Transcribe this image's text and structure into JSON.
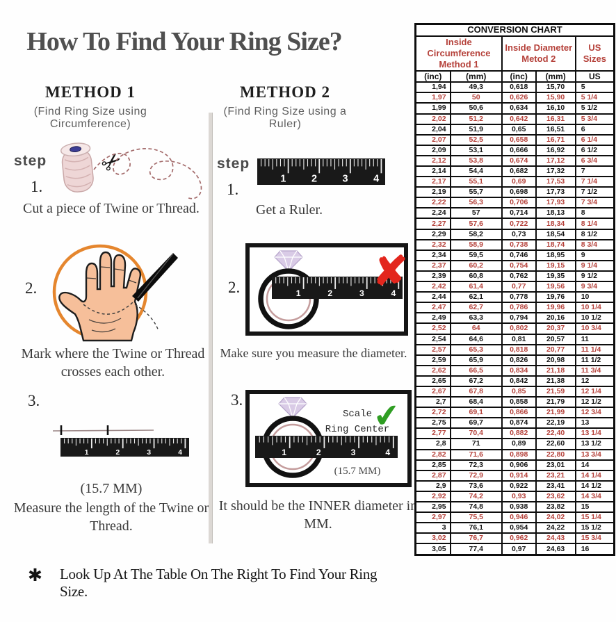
{
  "title": "How To Find Your Ring Size?",
  "footer": {
    "bullet": "✱",
    "text": "Look Up At The Table On The Right To Find Your Ring Size."
  },
  "icons": {
    "scissors": "✂",
    "check": "✔",
    "x_mark": "✘",
    "asterisk": "✱"
  },
  "ruler_numbers": [
    "1",
    "2",
    "3",
    "4"
  ],
  "colors": {
    "accent_red": "#b5413a",
    "table_border": "#0d0d0d",
    "ruler_bg": "#191919",
    "orange_circle": "#e5862e",
    "hand_skin": "#f6bf9a",
    "diamond": "#d9cbe6",
    "ring_inner": "#c49c9c",
    "check_green": "#2f9e23",
    "x_red": "#e3261d"
  },
  "method1": {
    "heading": "METHOD 1",
    "subheading": "(Find Ring Size using Circumference)",
    "step_label": "step",
    "steps": [
      {
        "num": "1.",
        "text": "Cut a piece of  Twine or Thread."
      },
      {
        "num": "2.",
        "text": "Mark where the Twine or Thread crosses each other."
      },
      {
        "num": "3.",
        "text": "Measure the length of the Twine or Thread.",
        "measurement": "(15.7 MM)"
      }
    ]
  },
  "method2": {
    "heading": "METHOD 2",
    "subheading": "(Find Ring Size using a Ruler)",
    "step_label": "step",
    "steps": [
      {
        "num": "1.",
        "text": "Get a Ruler."
      },
      {
        "num": "2.",
        "text": "Make sure you measure the diameter."
      },
      {
        "num": "3.",
        "text": "It should be the INNER diameter in MM.",
        "measurement": "(15.7 MM)",
        "scale_label": "Scale\nRing Center"
      }
    ]
  },
  "chart_data": {
    "type": "table",
    "title": "CONVERSION CHART",
    "column_groups": [
      {
        "label": "Inside Circumference\nMethod 1",
        "span": 2
      },
      {
        "label": "Inside Diameter\nMetod 2",
        "span": 2
      },
      {
        "label": "US Sizes",
        "span": 1
      }
    ],
    "columns": [
      "(inc)",
      "(mm)",
      "(inc)",
      "(mm)",
      "US"
    ],
    "highlight_color": "#b5413a",
    "highlight_rule": "quarter and three-quarter US sizes are shown in red",
    "rows": [
      [
        "1,94",
        "49,3",
        "0,618",
        "15,70",
        "5"
      ],
      [
        "1,97",
        "50",
        "0,626",
        "15,90",
        "5 1/4"
      ],
      [
        "1,99",
        "50,6",
        "0,634",
        "16,10",
        "5 1/2"
      ],
      [
        "2,02",
        "51,2",
        "0,642",
        "16,31",
        "5 3/4"
      ],
      [
        "2,04",
        "51,9",
        "0,65",
        "16,51",
        "6"
      ],
      [
        "2,07",
        "52,5",
        "0,658",
        "16,71",
        "6 1/4"
      ],
      [
        "2,09",
        "53,1",
        "0,666",
        "16,92",
        "6 1/2"
      ],
      [
        "2,12",
        "53,8",
        "0,674",
        "17,12",
        "6 3/4"
      ],
      [
        "2,14",
        "54,4",
        "0,682",
        "17,32",
        "7"
      ],
      [
        "2,17",
        "55,1",
        "0,69",
        "17,53",
        "7 1/4"
      ],
      [
        "2,19",
        "55,7",
        "0,698",
        "17,73",
        "7 1/2"
      ],
      [
        "2,22",
        "56,3",
        "0,706",
        "17,93",
        "7 3/4"
      ],
      [
        "2,24",
        "57",
        "0,714",
        "18,13",
        "8"
      ],
      [
        "2,27",
        "57,6",
        "0,722",
        "18,34",
        "8 1/4"
      ],
      [
        "2,29",
        "58,2",
        "0,73",
        "18,54",
        "8 1/2"
      ],
      [
        "2,32",
        "58,9",
        "0,738",
        "18,74",
        "8 3/4"
      ],
      [
        "2,34",
        "59,5",
        "0,746",
        "18,95",
        "9"
      ],
      [
        "2,37",
        "60,2",
        "0,754",
        "19,15",
        "9 1/4"
      ],
      [
        "2,39",
        "60,8",
        "0,762",
        "19,35",
        "9 1/2"
      ],
      [
        "2,42",
        "61,4",
        "0,77",
        "19,56",
        "9 3/4"
      ],
      [
        "2,44",
        "62,1",
        "0,778",
        "19,76",
        "10"
      ],
      [
        "2,47",
        "62,7",
        "0,786",
        "19,96",
        "10 1/4"
      ],
      [
        "2,49",
        "63,3",
        "0,794",
        "20,16",
        "10 1/2"
      ],
      [
        "2,52",
        "64",
        "0,802",
        "20,37",
        "10 3/4"
      ],
      [
        "2,54",
        "64,6",
        "0,81",
        "20,57",
        "11"
      ],
      [
        "2,57",
        "65,3",
        "0,818",
        "20,77",
        "11 1/4"
      ],
      [
        "2,59",
        "65,9",
        "0,826",
        "20,98",
        "11 1/2"
      ],
      [
        "2,62",
        "66,5",
        "0,834",
        "21,18",
        "11 3/4"
      ],
      [
        "2,65",
        "67,2",
        "0,842",
        "21,38",
        "12"
      ],
      [
        "2,67",
        "67,8",
        "0,85",
        "21,59",
        "12 1/4"
      ],
      [
        "2,7",
        "68,4",
        "0,858",
        "21,79",
        "12 1/2"
      ],
      [
        "2,72",
        "69,1",
        "0,866",
        "21,99",
        "12 3/4"
      ],
      [
        "2,75",
        "69,7",
        "0,874",
        "22,19",
        "13"
      ],
      [
        "2,77",
        "70,4",
        "0,882",
        "22,40",
        "13 1/4"
      ],
      [
        "2,8",
        "71",
        "0,89",
        "22,60",
        "13 1/2"
      ],
      [
        "2,82",
        "71,6",
        "0,898",
        "22,80",
        "13 3/4"
      ],
      [
        "2,85",
        "72,3",
        "0,906",
        "23,01",
        "14"
      ],
      [
        "2,87",
        "72,9",
        "0,914",
        "23,21",
        "14 1/4"
      ],
      [
        "2,9",
        "73,6",
        "0,922",
        "23,41",
        "14 1/2"
      ],
      [
        "2,92",
        "74,2",
        "0,93",
        "23,62",
        "14 3/4"
      ],
      [
        "2,95",
        "74,8",
        "0,938",
        "23,82",
        "15"
      ],
      [
        "2,97",
        "75,5",
        "0,946",
        "24,02",
        "15 1/4"
      ],
      [
        "3",
        "76,1",
        "0,954",
        "24,22",
        "15 1/2"
      ],
      [
        "3,02",
        "76,7",
        "0,962",
        "24,43",
        "15 3/4"
      ],
      [
        "3,05",
        "77,4",
        "0,97",
        "24,63",
        "16"
      ]
    ]
  }
}
